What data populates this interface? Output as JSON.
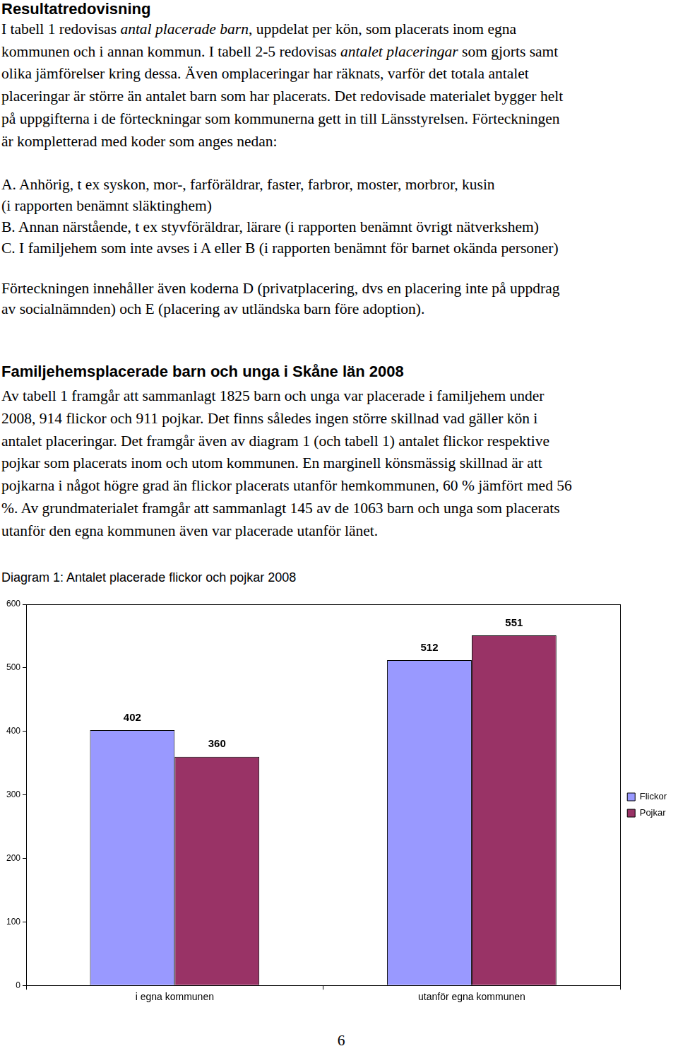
{
  "document": {
    "heading": "Resultatredovisning",
    "intro": [
      [
        "I tabell 1 redovisas ",
        {
          "text": "antal placerade barn",
          "italic": true
        },
        ", uppdelat per kön, som placerats inom egna"
      ],
      [
        "kommunen och i annan kommun. I tabell 2-5 redovisas ",
        {
          "text": "antalet placeringar",
          "italic": true
        },
        " som gjorts samt"
      ],
      [
        "olika jämförelser kring dessa. Även omplaceringar har räknats, varför det totala antalet"
      ],
      [
        "placeringar är större än antalet barn som har placerats. Det redovisade materialet bygger helt"
      ],
      [
        "på uppgifterna i de förteckningar som kommunerna gett in till Länsstyrelsen. Förteckningen"
      ],
      [
        "är kompletterad med koder som anges nedan:"
      ]
    ],
    "codes": [
      [
        "A. Anhörig, t ex syskon, mor-, farföräldrar, faster, farbror, moster, morbror, kusin"
      ],
      [
        "(i rapporten benämnt släktinghem)"
      ],
      [
        "B. Annan närstående, t ex styvföräldrar, lärare (i rapporten benämnt övrigt nätverkshem)"
      ],
      [
        "C. I familjehem som inte avses i A eller B (i rapporten benämnt för barnet okända personer)"
      ]
    ],
    "note": [
      [
        "Förteckningen innehåller även koderna D (privatplacering, dvs en placering inte på uppdrag"
      ],
      [
        "av socialnämnden) och E (placering av utländska barn före adoption)."
      ]
    ],
    "section_heading": "Familjehemsplacerade barn och unga i Skåne län 2008",
    "section": [
      [
        "Av tabell 1 framgår att sammanlagt 1825 barn och unga var placerade i familjehem under"
      ],
      [
        "2008, 914 flickor och 911 pojkar. Det finns således ingen större skillnad vad gäller kön i"
      ],
      [
        "antalet placeringar. Det framgår även av diagram 1 (och tabell 1) antalet flickor respektive"
      ],
      [
        "pojkar som placerats inom och utom kommunen. En marginell könsmässig skillnad är att"
      ],
      [
        "pojkarna i något högre grad än flickor placerats utanför hemkommunen, 60 % jämfört med 56"
      ],
      [
        "%. Av grundmaterialet framgår att sammanlagt 145 av de 1063 barn och unga som placerats"
      ],
      [
        "utanför den egna kommunen även var placerade utanför länet."
      ]
    ],
    "page_number": "6"
  },
  "chart_data": {
    "type": "bar",
    "title": "Diagram 1: Antalet placerade flickor och pojkar 2008",
    "categories": [
      "i egna kommunen",
      "utanför egna kommunen"
    ],
    "series": [
      {
        "name": "Flickor",
        "color": "#9999ff",
        "values": [
          402,
          512
        ]
      },
      {
        "name": "Pojkar",
        "color": "#993366",
        "values": [
          360,
          551
        ]
      }
    ],
    "ylim": [
      0,
      600
    ],
    "yticks": [
      0,
      100,
      200,
      300,
      400,
      500,
      600
    ],
    "grid": false,
    "legend": "right",
    "data_labels": true
  }
}
